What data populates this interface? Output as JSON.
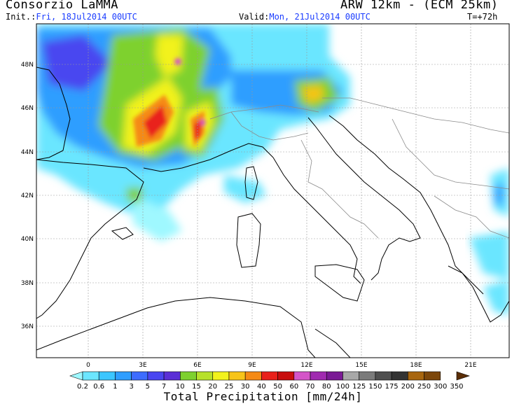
{
  "header": {
    "left_title": "Consorzio LaMMA",
    "right_title": "ARW 12km - (ECM 25km)",
    "init_label": "Init.:",
    "init_value": "Fri, 18Jul2014 00UTC",
    "valid_label": "Valid:",
    "valid_value": "Mon, 21Jul2014 00UTC",
    "lead_time": "T=+72h"
  },
  "map": {
    "lat_labels": [
      "48N",
      "46N",
      "44N",
      "42N",
      "40N",
      "38N",
      "36N"
    ],
    "lon_labels": [
      "0",
      "3E",
      "6E",
      "9E",
      "12E",
      "15E",
      "18E",
      "21E"
    ]
  },
  "colorbar": {
    "title": "Total Precipitation [mm/24h]",
    "levels": [
      "0.2",
      "0.6",
      "1",
      "3",
      "5",
      "7",
      "10",
      "15",
      "20",
      "25",
      "30",
      "40",
      "50",
      "60",
      "70",
      "80",
      "100",
      "125",
      "150",
      "175",
      "200",
      "250",
      "300",
      "350"
    ],
    "colors": [
      "#9ff8ff",
      "#6be6ff",
      "#3cc6ff",
      "#2f9eff",
      "#3d6cff",
      "#4a46f0",
      "#5b2fd6",
      "#7ed12f",
      "#b7e12b",
      "#f2f21c",
      "#f7c418",
      "#f58a14",
      "#e9201a",
      "#c80d0d",
      "#d455c8",
      "#a02ab0",
      "#7a1a95",
      "#a8a8a8",
      "#7b7b7b",
      "#4f4f4f",
      "#333333",
      "#a8660f",
      "#7d470a",
      "#5a2d06"
    ]
  }
}
